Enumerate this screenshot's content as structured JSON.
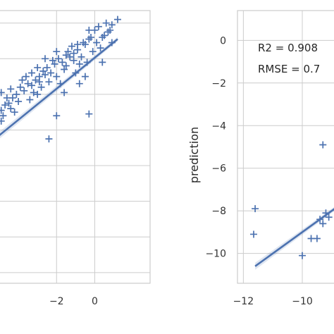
{
  "chart_data": [
    {
      "type": "scatter",
      "panel": "left",
      "xlabel": "",
      "ylabel": "",
      "x_ticks": [
        "−2",
        "0"
      ],
      "xlim": [
        -5.0,
        2.9
      ],
      "ylim": [
        -13.6,
        1.7
      ],
      "grid": true,
      "marker": "+",
      "color": "#4c72b0",
      "regression_line": {
        "x": [
          -5.0,
          1.2
        ],
        "y": [
          -5.3,
          0.1
        ]
      },
      "points": [
        [
          1.2,
          1.2
        ],
        [
          0.2,
          0.8
        ],
        [
          -0.3,
          0.6
        ],
        [
          0.9,
          0.9
        ],
        [
          0.5,
          0.3
        ],
        [
          0.1,
          -0.1
        ],
        [
          -0.5,
          -0.2
        ],
        [
          -0.9,
          -0.5
        ],
        [
          -1.3,
          -0.9
        ],
        [
          -1.7,
          -1.2
        ],
        [
          -2.1,
          -1.3
        ],
        [
          -2.5,
          -1.5
        ],
        [
          -2.9,
          -2.0
        ],
        [
          -3.3,
          -2.5
        ],
        [
          -3.7,
          -2.8
        ],
        [
          -4.1,
          -3.0
        ],
        [
          -4.5,
          -3.5
        ],
        [
          -4.9,
          -3.9
        ],
        [
          -4.7,
          -3.6
        ],
        [
          -4.3,
          -3.2
        ],
        [
          -3.9,
          -2.6
        ],
        [
          -3.5,
          -2.4
        ],
        [
          -3.1,
          -2.2
        ],
        [
          -2.7,
          -1.7
        ],
        [
          -2.3,
          -1.8
        ],
        [
          -1.9,
          -1.0
        ],
        [
          -1.5,
          -1.4
        ],
        [
          -1.1,
          -0.7
        ],
        [
          -0.7,
          -0.9
        ],
        [
          -0.3,
          0.1
        ],
        [
          0.3,
          -0.4
        ],
        [
          0.7,
          0.5
        ],
        [
          -0.1,
          -0.6
        ],
        [
          -0.8,
          -1.3
        ],
        [
          -1.6,
          -1.6
        ],
        [
          -2.4,
          -2.3
        ],
        [
          -3.2,
          -2.9
        ],
        [
          -4.0,
          -3.4
        ],
        [
          -4.8,
          -4.2
        ],
        [
          -4.6,
          -3.2
        ],
        [
          -3.8,
          -2.2
        ],
        [
          -3.0,
          -1.5
        ],
        [
          -2.2,
          -1.1
        ],
        [
          -1.4,
          -0.6
        ],
        [
          -0.6,
          -0.1
        ],
        [
          0.0,
          0.6
        ],
        [
          0.6,
          1.0
        ],
        [
          -2.6,
          -1.0
        ],
        [
          -3.6,
          -2.0
        ],
        [
          -4.4,
          -2.7
        ],
        [
          -1.2,
          -0.3
        ],
        [
          -2.0,
          -2.0
        ],
        [
          -2.8,
          -2.6
        ],
        [
          -3.4,
          -3.3
        ],
        [
          -4.2,
          -4.0
        ],
        [
          -1.0,
          -1.8
        ],
        [
          -1.8,
          -2.4
        ],
        [
          -2.0,
          -0.6
        ],
        [
          -0.4,
          -1.2
        ],
        [
          -3.0,
          -3.0
        ],
        [
          -4.9,
          -2.9
        ],
        [
          -4.9,
          -4.5
        ],
        [
          -4.4,
          -3.8
        ],
        [
          -3.3,
          -1.8
        ],
        [
          -0.9,
          -0.2
        ],
        [
          0.4,
          0.2
        ],
        [
          0.8,
          0.6
        ],
        [
          -0.2,
          0.2
        ],
        [
          -1.5,
          -0.8
        ],
        [
          -2.6,
          -1.9
        ],
        [
          -0.5,
          -2.0
        ],
        [
          -0.8,
          -2.4
        ],
        [
          -2.0,
          -4.2
        ],
        [
          -2.4,
          -5.5
        ],
        [
          -0.3,
          -4.1
        ],
        [
          -1.6,
          -2.9
        ],
        [
          0.4,
          -1.2
        ],
        [
          0.9,
          -0.1
        ],
        [
          -1.1,
          -1.1
        ],
        [
          -2.9,
          -2.3
        ]
      ]
    },
    {
      "type": "scatter",
      "panel": "right",
      "xlabel": "",
      "ylabel": "prediction",
      "x_ticks": [
        "−12",
        "−10"
      ],
      "y_ticks": [
        "0",
        "−2",
        "−4",
        "−6",
        "−8",
        "−10"
      ],
      "xlim": [
        -12.2,
        -8.9
      ],
      "ylim": [
        -11.4,
        1.4
      ],
      "grid": true,
      "marker": "+",
      "color": "#4c72b0",
      "annotations": [
        "R2 = 0.908",
        "RMSE = 0.7"
      ],
      "regression_line": {
        "x": [
          -11.6,
          -8.9
        ],
        "y": [
          -10.6,
          -7.9
        ]
      },
      "points": [
        [
          -11.6,
          -7.9
        ],
        [
          -11.65,
          -9.1
        ],
        [
          -10.0,
          -10.1
        ],
        [
          -9.3,
          -4.9
        ],
        [
          -9.4,
          -8.4
        ],
        [
          -9.5,
          -9.3
        ],
        [
          -9.7,
          -9.3
        ],
        [
          -9.3,
          -8.6
        ],
        [
          -9.2,
          -8.1
        ],
        [
          -9.1,
          -8.3
        ]
      ]
    }
  ]
}
